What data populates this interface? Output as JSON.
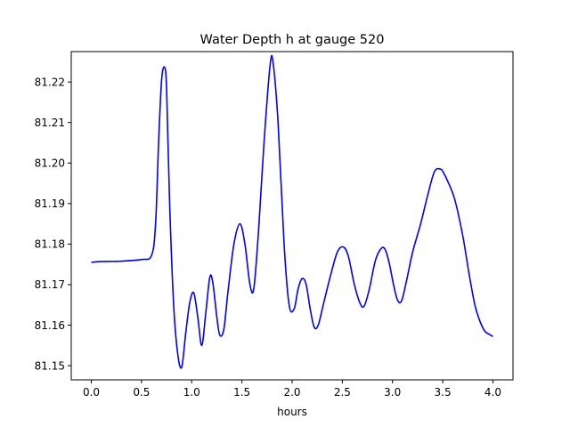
{
  "chart_data": {
    "type": "line",
    "title": "Water Depth h at gauge 520",
    "xlabel": "hours",
    "ylabel": "",
    "xlim": [
      -0.2,
      4.2
    ],
    "ylim": [
      81.1465,
      81.2275
    ],
    "x_ticks": [
      0.0,
      0.5,
      1.0,
      1.5,
      2.0,
      2.5,
      3.0,
      3.5,
      4.0
    ],
    "x_tick_labels": [
      "0.0",
      "0.5",
      "1.0",
      "1.5",
      "2.0",
      "2.5",
      "3.0",
      "3.5",
      "4.0"
    ],
    "y_ticks": [
      81.15,
      81.16,
      81.17,
      81.18,
      81.19,
      81.2,
      81.21,
      81.22
    ],
    "y_tick_labels": [
      "81.15",
      "81.16",
      "81.17",
      "81.18",
      "81.19",
      "81.20",
      "81.21",
      "81.22"
    ],
    "grid": false,
    "series": [
      {
        "color": "#0000ff",
        "x": [
          0.0,
          0.1,
          0.3,
          0.5,
          0.6,
          0.64,
          0.67,
          0.7,
          0.73,
          0.75,
          0.78,
          0.82,
          0.86,
          0.9,
          0.94,
          0.98,
          1.02,
          1.06,
          1.1,
          1.14,
          1.18,
          1.21,
          1.25,
          1.28,
          1.32,
          1.36,
          1.42,
          1.48,
          1.53,
          1.58,
          1.62,
          1.67,
          1.72,
          1.78,
          1.81,
          1.86,
          1.92,
          1.97,
          2.02,
          2.06,
          2.1,
          2.14,
          2.18,
          2.22,
          2.26,
          2.31,
          2.38,
          2.45,
          2.51,
          2.56,
          2.62,
          2.68,
          2.72,
          2.77,
          2.83,
          2.89,
          2.93,
          2.97,
          3.01,
          3.05,
          3.09,
          3.14,
          3.2,
          3.28,
          3.36,
          3.42,
          3.48,
          3.51,
          3.55,
          3.62,
          3.7,
          3.76,
          3.82,
          3.87,
          3.92,
          3.96,
          4.0
        ],
        "y": [
          81.1755,
          81.1757,
          81.1758,
          81.1762,
          81.1772,
          81.185,
          81.205,
          81.2205,
          81.2236,
          81.218,
          81.19,
          81.165,
          81.153,
          81.1496,
          81.158,
          81.1655,
          81.168,
          81.162,
          81.155,
          81.163,
          81.1718,
          81.1705,
          81.162,
          81.1575,
          81.159,
          81.168,
          81.18,
          81.185,
          81.18,
          81.17,
          81.1693,
          81.185,
          81.205,
          81.224,
          81.2248,
          81.21,
          81.18,
          81.165,
          81.164,
          81.169,
          81.1715,
          81.17,
          81.164,
          81.1595,
          81.16,
          81.165,
          81.172,
          81.178,
          81.1793,
          81.177,
          81.17,
          81.1652,
          81.1648,
          81.169,
          81.176,
          81.179,
          81.1785,
          81.175,
          81.17,
          81.1662,
          81.166,
          81.171,
          81.178,
          81.185,
          81.193,
          81.198,
          81.1985,
          81.1975,
          81.1955,
          81.191,
          81.182,
          81.173,
          81.165,
          81.161,
          81.1585,
          81.1578,
          81.1572
        ]
      }
    ]
  }
}
